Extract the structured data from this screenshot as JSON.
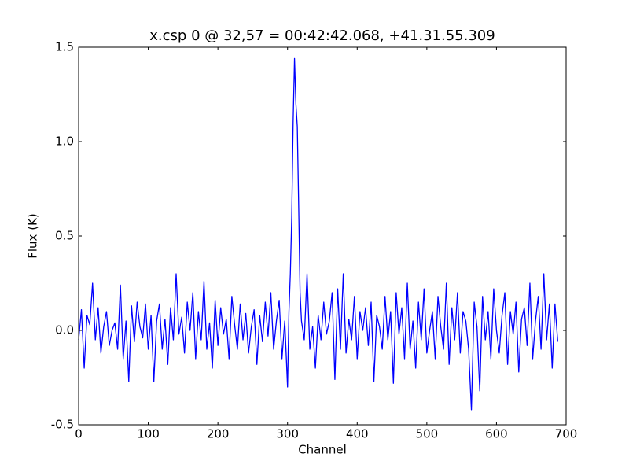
{
  "chart_data": {
    "type": "line",
    "title": "x.csp 0 @ 32,57 = 00:42:42.068, +41.31.55.309",
    "x_label": "Channel",
    "y_label": "Flux (K)",
    "xlim": [
      0,
      700
    ],
    "ylim": [
      -0.5,
      1.5
    ],
    "xticks": [
      0,
      100,
      200,
      300,
      400,
      500,
      600,
      700
    ],
    "yticks": [
      -0.5,
      {
        "value": 0,
        "label": "0.0"
      },
      0.5,
      {
        "value": 1,
        "label": "1.0"
      },
      1.5
    ],
    "grid": false,
    "series": [
      {
        "color": "#0000ff",
        "x": [
          0,
          4,
          8,
          12,
          16,
          20,
          24,
          28,
          32,
          36,
          40,
          44,
          48,
          52,
          56,
          60,
          64,
          68,
          72,
          76,
          80,
          84,
          88,
          92,
          96,
          100,
          104,
          108,
          112,
          116,
          120,
          124,
          128,
          132,
          136,
          140,
          144,
          148,
          152,
          156,
          160,
          164,
          168,
          172,
          176,
          180,
          184,
          188,
          192,
          196,
          200,
          204,
          208,
          212,
          216,
          220,
          224,
          228,
          232,
          236,
          240,
          244,
          248,
          252,
          256,
          260,
          264,
          268,
          272,
          276,
          280,
          284,
          288,
          292,
          296,
          300,
          302,
          304,
          306,
          308,
          310,
          312,
          314,
          316,
          318,
          320,
          324,
          328,
          332,
          336,
          340,
          344,
          348,
          352,
          356,
          360,
          364,
          368,
          372,
          376,
          380,
          384,
          388,
          392,
          396,
          400,
          404,
          408,
          412,
          416,
          420,
          424,
          428,
          432,
          436,
          440,
          444,
          448,
          452,
          456,
          460,
          464,
          468,
          472,
          476,
          480,
          484,
          488,
          492,
          496,
          500,
          504,
          508,
          512,
          516,
          520,
          524,
          528,
          532,
          536,
          540,
          544,
          548,
          552,
          556,
          560,
          564,
          568,
          572,
          576,
          580,
          584,
          588,
          592,
          596,
          600,
          604,
          608,
          612,
          616,
          620,
          624,
          628,
          632,
          636,
          640,
          644,
          648,
          652,
          656,
          660,
          664,
          668,
          672,
          676,
          680,
          684,
          688
        ],
        "values": [
          -0.05,
          0.11,
          -0.2,
          0.08,
          0.03,
          0.25,
          -0.05,
          0.12,
          -0.12,
          0.02,
          0.1,
          -0.08,
          0.0,
          0.04,
          -0.1,
          0.24,
          -0.15,
          0.05,
          -0.27,
          0.13,
          -0.06,
          0.15,
          0.02,
          -0.04,
          0.14,
          -0.1,
          0.08,
          -0.27,
          0.05,
          0.14,
          -0.1,
          0.06,
          -0.18,
          0.12,
          -0.05,
          0.3,
          -0.02,
          0.07,
          -0.12,
          0.15,
          0.0,
          0.2,
          -0.15,
          0.1,
          -0.05,
          0.26,
          -0.1,
          0.04,
          -0.2,
          0.16,
          -0.08,
          0.12,
          -0.02,
          0.06,
          -0.15,
          0.18,
          0.03,
          -0.1,
          0.14,
          -0.05,
          0.09,
          -0.12,
          0.02,
          0.11,
          -0.18,
          0.08,
          -0.06,
          0.15,
          -0.03,
          0.2,
          -0.1,
          0.05,
          0.16,
          -0.15,
          0.05,
          -0.3,
          0.1,
          0.3,
          0.6,
          1.1,
          1.44,
          1.2,
          1.08,
          0.65,
          0.2,
          0.05,
          -0.05,
          0.3,
          -0.1,
          0.02,
          -0.2,
          0.08,
          -0.05,
          0.15,
          -0.02,
          0.05,
          0.2,
          -0.26,
          0.22,
          -0.1,
          0.3,
          -0.12,
          0.06,
          -0.05,
          0.18,
          -0.15,
          0.1,
          0.0,
          0.12,
          -0.08,
          0.15,
          -0.27,
          0.08,
          0.02,
          -0.1,
          0.18,
          -0.05,
          0.1,
          -0.28,
          0.2,
          -0.02,
          0.12,
          -0.15,
          0.25,
          -0.1,
          0.05,
          -0.2,
          0.15,
          -0.05,
          0.22,
          -0.12,
          0.0,
          0.1,
          -0.15,
          0.18,
          0.02,
          -0.1,
          0.25,
          -0.18,
          0.12,
          -0.05,
          0.2,
          -0.12,
          0.1,
          0.05,
          -0.1,
          -0.42,
          0.15,
          0.02,
          -0.32,
          0.18,
          -0.05,
          0.1,
          -0.15,
          0.22,
          0.0,
          -0.12,
          0.08,
          0.2,
          -0.18,
          0.1,
          -0.02,
          0.15,
          -0.22,
          0.06,
          0.12,
          -0.08,
          0.25,
          -0.15,
          0.05,
          0.18,
          -0.1,
          0.3,
          -0.05,
          0.14,
          -0.2,
          0.14,
          -0.06
        ]
      }
    ]
  }
}
